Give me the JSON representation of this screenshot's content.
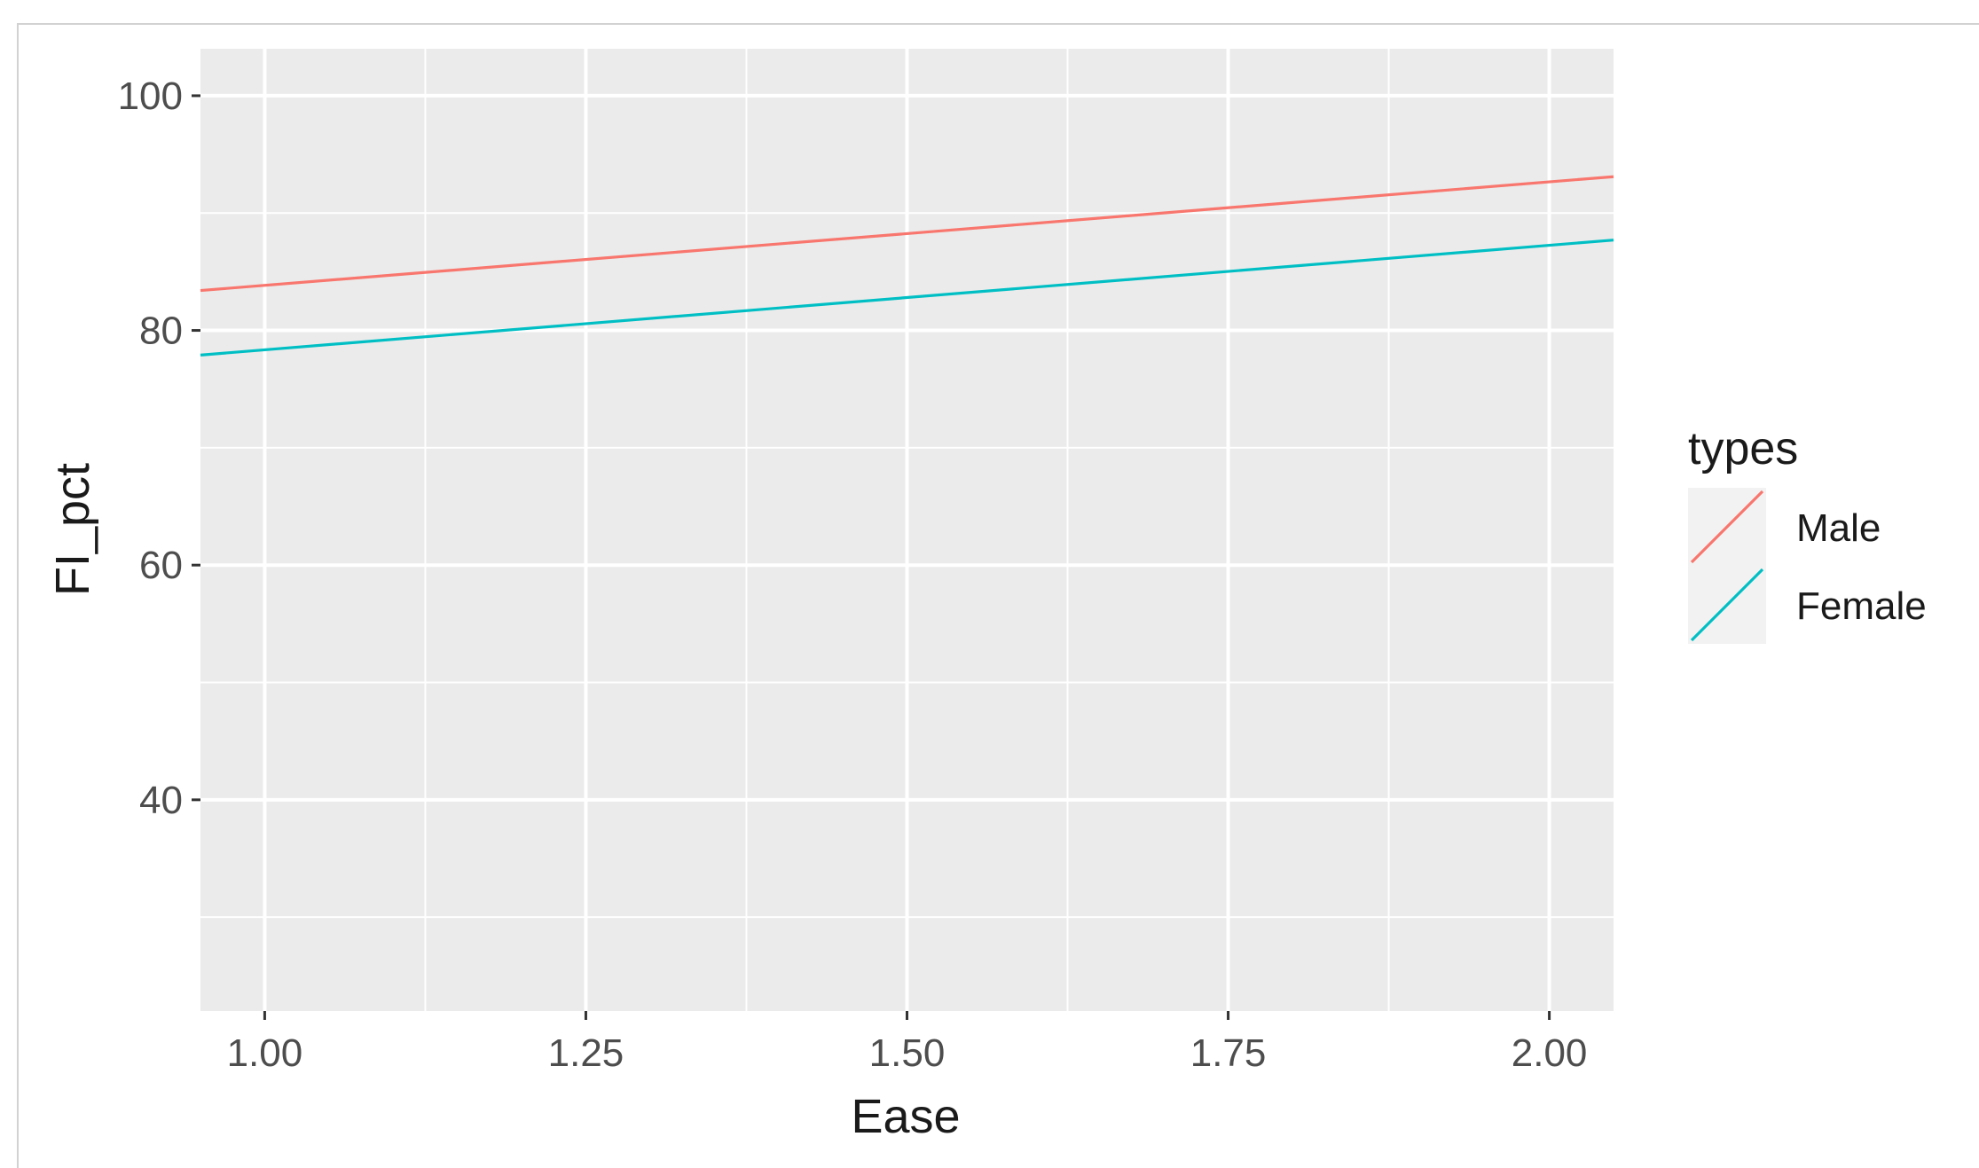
{
  "chart_data": {
    "type": "line",
    "xlabel": "Ease",
    "ylabel": "FI_pct",
    "xlim": [
      0.95,
      2.05
    ],
    "ylim": [
      22,
      104
    ],
    "x_ticks": [
      1.0,
      1.25,
      1.5,
      1.75,
      2.0
    ],
    "x_tick_labels": [
      "1.00",
      "1.25",
      "1.50",
      "1.75",
      "2.00"
    ],
    "y_ticks": [
      40,
      60,
      80,
      100
    ],
    "y_tick_labels": [
      "40",
      "60",
      "80",
      "100"
    ],
    "grid": true,
    "legend": {
      "title": "types",
      "placement": "right"
    },
    "series": [
      {
        "name": "Male",
        "color": "#F8766D",
        "x": [
          0.95,
          2.05
        ],
        "y": [
          83.4,
          93.1
        ]
      },
      {
        "name": "Female",
        "color": "#00BFC4",
        "x": [
          0.95,
          2.05
        ],
        "y": [
          77.9,
          87.7
        ]
      }
    ]
  }
}
